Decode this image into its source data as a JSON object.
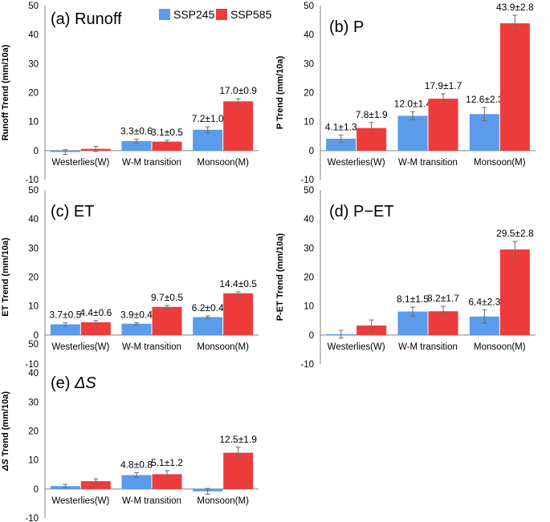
{
  "colors": {
    "ssp245": "#5B9BEB",
    "ssp585": "#EE3B3B",
    "axis": "#808080",
    "error": "#6B6B6B",
    "text": "#000000"
  },
  "legend": [
    {
      "name": "SSP245",
      "color": "#5B9BEB"
    },
    {
      "name": "SSP585",
      "color": "#EE3B3B"
    }
  ],
  "chart_data": [
    {
      "type": "bar",
      "panel": "a",
      "title": "(a) Runoff",
      "ylabel": "Runoff Trend (mm/10a)",
      "ylim": [
        -10,
        50
      ],
      "yticks": [
        "50",
        "40",
        "30",
        "20",
        "10",
        "0",
        "-10"
      ],
      "categories": [
        "Westerlies(W)",
        "W-M transition",
        "Monsoon(M)"
      ],
      "series": [
        {
          "name": "SSP245",
          "values": [
            -0.5,
            3.3,
            7.2
          ],
          "errors": [
            0.8,
            0.6,
            1.0
          ],
          "labels": [
            "",
            "3.3±0.6",
            "7.2±1.0"
          ]
        },
        {
          "name": "SSP585",
          "values": [
            0.6,
            3.1,
            17.0
          ],
          "errors": [
            0.9,
            0.5,
            0.9
          ],
          "labels": [
            "",
            "3.1±0.5",
            "17.0±0.9"
          ]
        }
      ]
    },
    {
      "type": "bar",
      "panel": "b",
      "title": "(b) P",
      "ylabel": "P Trend (mm/10a)",
      "ylim": [
        -10,
        50
      ],
      "yticks": [
        "50",
        "40",
        "30",
        "20",
        "10",
        "0",
        "-10"
      ],
      "categories": [
        "Westerlies(W)",
        "W-M transition",
        "Monsoon(M)"
      ],
      "series": [
        {
          "name": "SSP245",
          "values": [
            4.1,
            12.0,
            12.6
          ],
          "errors": [
            1.3,
            1.4,
            2.3
          ],
          "labels": [
            "4.1±1.3",
            "12.0±1.4",
            "12.6±2.3"
          ]
        },
        {
          "name": "SSP585",
          "values": [
            7.8,
            17.9,
            43.9
          ],
          "errors": [
            1.9,
            1.7,
            2.8
          ],
          "labels": [
            "7.8±1.9",
            "17.9±1.7",
            "43.9±2.8"
          ]
        }
      ]
    },
    {
      "type": "bar",
      "panel": "c",
      "title": "(c) ET",
      "ylabel": "ET Trend (mm/10a)",
      "ylim": [
        -10,
        50
      ],
      "yticks": [
        "50",
        "40",
        "30",
        "20",
        "10",
        "0",
        "-10"
      ],
      "categories": [
        "Westerlies(W)",
        "W-M transition",
        "Monsoon(M)"
      ],
      "series": [
        {
          "name": "SSP245",
          "values": [
            3.7,
            3.9,
            6.2
          ],
          "errors": [
            0.5,
            0.4,
            0.4
          ],
          "labels": [
            "3.7±0.5",
            "3.9±0.4",
            "6.2±0.4"
          ]
        },
        {
          "name": "SSP585",
          "values": [
            4.4,
            9.7,
            14.4
          ],
          "errors": [
            0.6,
            0.5,
            0.5
          ],
          "labels": [
            "4.4±0.6",
            "9.7±0.5",
            "14.4±0.5"
          ]
        }
      ]
    },
    {
      "type": "bar",
      "panel": "d",
      "title": "(d) P−ET",
      "ylabel": "P-ET Trend (mm/10a)",
      "ylim": [
        -10,
        50
      ],
      "yticks": [
        "50",
        "40",
        "30",
        "20",
        "10",
        "0",
        "-10"
      ],
      "categories": [
        "Westerlies(W)",
        "W-M transition",
        "Monsoon(M)"
      ],
      "series": [
        {
          "name": "SSP245",
          "values": [
            0.3,
            8.1,
            6.4
          ],
          "errors": [
            1.3,
            1.5,
            2.3
          ],
          "labels": [
            "",
            "8.1±1.5",
            "6.4±2.3"
          ]
        },
        {
          "name": "SSP585",
          "values": [
            3.3,
            8.2,
            29.5
          ],
          "errors": [
            1.9,
            1.7,
            2.8
          ],
          "labels": [
            "",
            "8.2±1.7",
            "29.5±2.8"
          ]
        }
      ]
    },
    {
      "type": "bar",
      "panel": "e",
      "title_prefix": "(e) ",
      "title_symbol": "ΔS",
      "ylabel_symbol": "ΔS",
      "ylabel_rest": " Trend (mm/10a)",
      "ylim": [
        -10,
        50
      ],
      "yticks": [
        "50",
        "40",
        "30",
        "20",
        "10",
        "0",
        "-10"
      ],
      "categories": [
        "Westerlies(W)",
        "W-M transition",
        "Monsoon(M)"
      ],
      "series": [
        {
          "name": "SSP245",
          "values": [
            1.0,
            4.8,
            -0.8
          ],
          "errors": [
            0.6,
            0.8,
            1.0
          ],
          "labels": [
            "",
            "4.8±0.8",
            ""
          ]
        },
        {
          "name": "SSP585",
          "values": [
            2.7,
            5.1,
            12.5
          ],
          "errors": [
            0.8,
            1.2,
            1.9
          ],
          "labels": [
            "",
            "5.1±1.2",
            "12.5±1.9"
          ]
        }
      ]
    }
  ]
}
